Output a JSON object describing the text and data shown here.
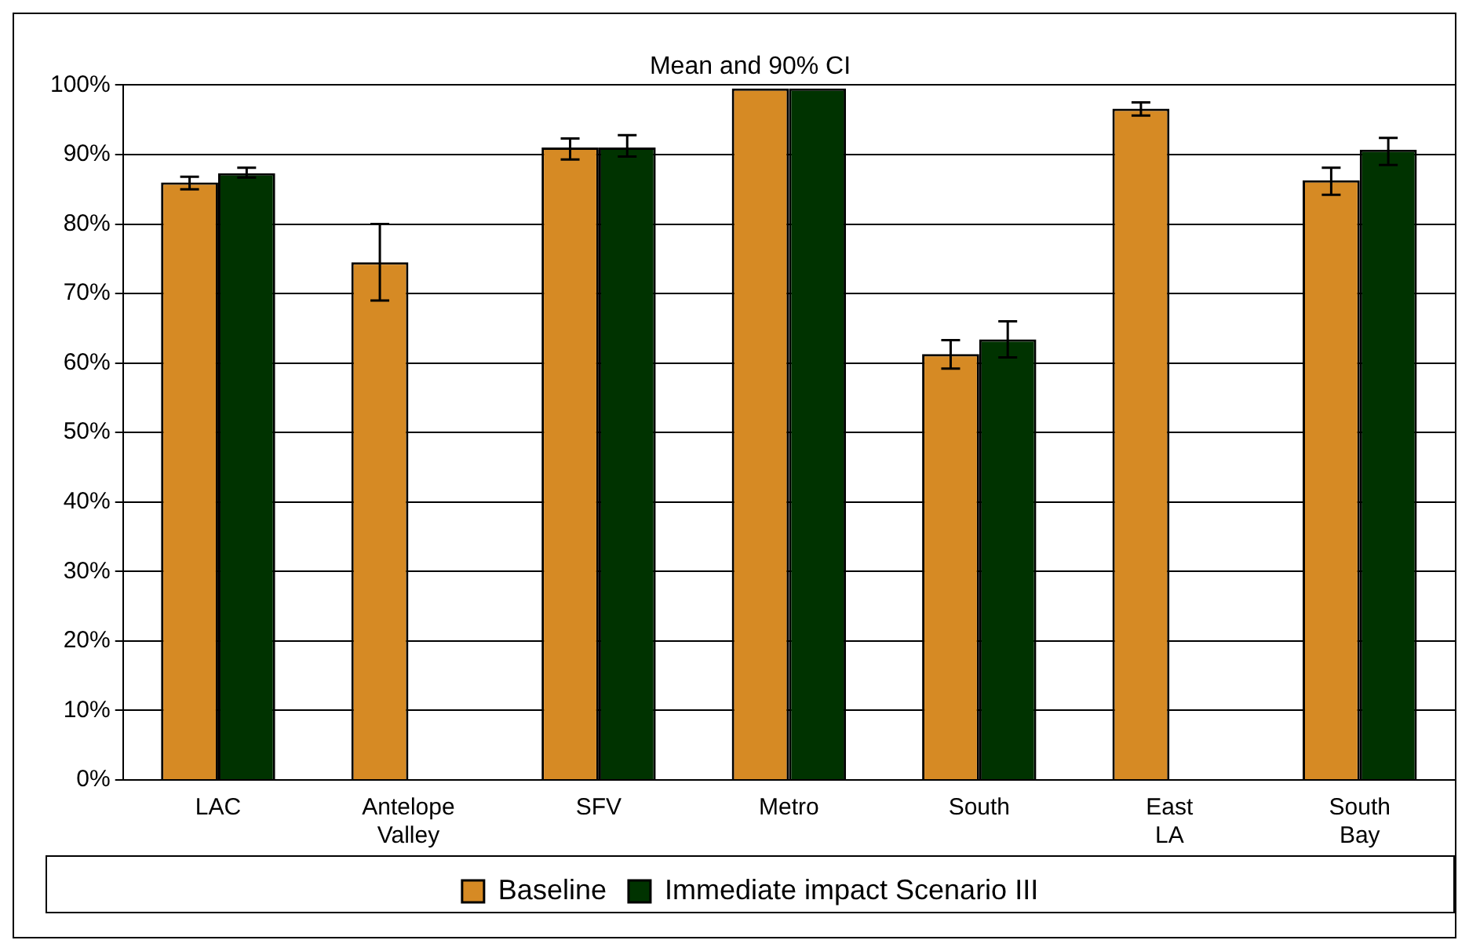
{
  "chart_data": {
    "type": "bar",
    "title": "Mean and 90% CI",
    "categories": [
      "LAC",
      "Antelope Valley",
      "SFV",
      "Metro",
      "South",
      "East LA",
      "South Bay"
    ],
    "series": [
      {
        "name": "Baseline",
        "color": "#d68a24",
        "values": [
          86.0,
          74.5,
          91.0,
          99.5,
          61.3,
          96.6,
          86.3
        ],
        "errors": [
          [
            85.0,
            86.8
          ],
          [
            69.0,
            80.0
          ],
          [
            89.3,
            92.3
          ],
          null,
          [
            59.2,
            63.3
          ],
          [
            95.6,
            97.5
          ],
          [
            84.2,
            88.1
          ]
        ]
      },
      {
        "name": "Immediate impact Scenario III",
        "color": "#003300",
        "values": [
          87.3,
          0,
          91.0,
          99.5,
          63.4,
          0,
          90.7
        ],
        "errors": [
          [
            86.7,
            88.1
          ],
          null,
          [
            89.7,
            92.8
          ],
          null,
          [
            60.8,
            66.0
          ],
          null,
          [
            88.5,
            92.4
          ]
        ]
      }
    ],
    "ylim": [
      0,
      100
    ],
    "yticks": [
      {
        "value": 0,
        "label": "0%"
      },
      {
        "value": 10,
        "label": "10%"
      },
      {
        "value": 20,
        "label": "20%"
      },
      {
        "value": 30,
        "label": "30%"
      },
      {
        "value": 40,
        "label": "40%"
      },
      {
        "value": 50,
        "label": "50%"
      },
      {
        "value": 60,
        "label": "60%"
      },
      {
        "value": 70,
        "label": "70%"
      },
      {
        "value": 80,
        "label": "80%"
      },
      {
        "value": 90,
        "label": "90%"
      },
      {
        "value": 100,
        "label": "100%"
      }
    ],
    "grid": "y",
    "legend": "bottom"
  }
}
